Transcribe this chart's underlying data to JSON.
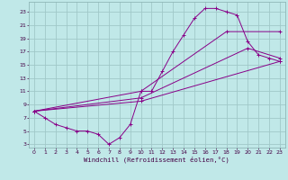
{
  "xlabel": "Windchill (Refroidissement éolien,°C)",
  "bg_color": "#c0e8e8",
  "grid_color": "#a0c8c8",
  "line_color": "#880088",
  "xlim": [
    -0.5,
    23.5
  ],
  "ylim": [
    2.5,
    24.5
  ],
  "xticks": [
    0,
    1,
    2,
    3,
    4,
    5,
    6,
    7,
    8,
    9,
    10,
    11,
    12,
    13,
    14,
    15,
    16,
    17,
    18,
    19,
    20,
    21,
    22,
    23
  ],
  "yticks": [
    3,
    5,
    7,
    9,
    11,
    13,
    15,
    17,
    19,
    21,
    23
  ],
  "curve1_x": [
    0,
    1,
    2,
    3,
    4,
    5,
    6,
    7,
    8,
    9,
    10,
    11,
    12,
    13,
    14,
    15,
    16,
    17,
    18,
    19,
    20,
    21,
    22,
    23
  ],
  "curve1_y": [
    8,
    7,
    6,
    5.5,
    5,
    5,
    4.5,
    3,
    4,
    6,
    11,
    11,
    14,
    17,
    19.5,
    22,
    23.5,
    23.5,
    23,
    22.5,
    18.5,
    16.5,
    16,
    15.5
  ],
  "curve2_x": [
    0,
    10,
    18,
    23
  ],
  "curve2_y": [
    8,
    11,
    20,
    20
  ],
  "curve3_x": [
    0,
    10,
    20,
    23
  ],
  "curve3_y": [
    8,
    10,
    17.5,
    16
  ],
  "curve4_x": [
    0,
    10,
    23
  ],
  "curve4_y": [
    8,
    9.5,
    15.5
  ]
}
